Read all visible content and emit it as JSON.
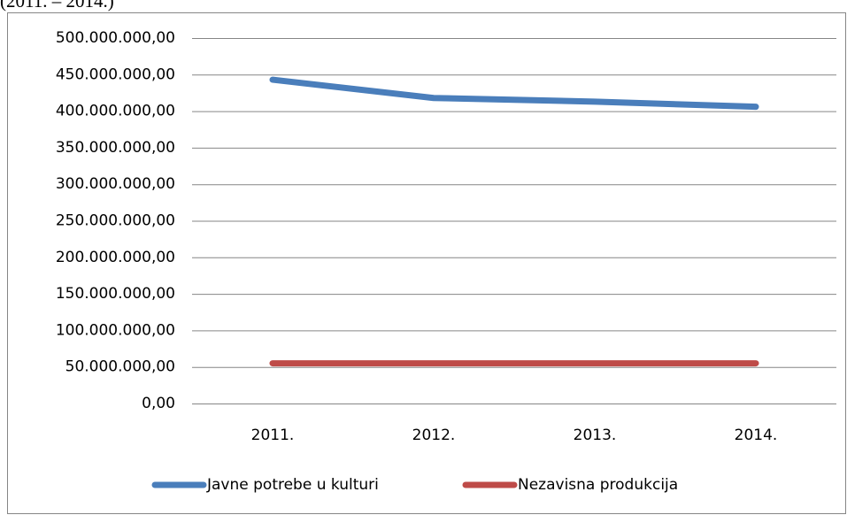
{
  "chart_data": {
    "type": "line",
    "title": "(2011. – 2014.)",
    "categories": [
      "2011.",
      "2012.",
      "2013.",
      "2014."
    ],
    "series": [
      {
        "name": "Javne potrebe u kulturi",
        "color": "#4a7ebb",
        "values": [
          443000000,
          418000000,
          413000000,
          406000000
        ]
      },
      {
        "name": "Nezavisna produkcija",
        "color": "#be4b48",
        "values": [
          55000000,
          55000000,
          55000000,
          55000000
        ]
      }
    ],
    "ylim": [
      0,
      500000000
    ],
    "yticks": [
      {
        "value": 0,
        "label": "0,00"
      },
      {
        "value": 50000000,
        "label": "50.000.000,00"
      },
      {
        "value": 100000000,
        "label": "100.000.000,00"
      },
      {
        "value": 150000000,
        "label": "150.000.000,00"
      },
      {
        "value": 200000000,
        "label": "200.000.000,00"
      },
      {
        "value": 250000000,
        "label": "250.000.000,00"
      },
      {
        "value": 300000000,
        "label": "300.000.000,00"
      },
      {
        "value": 350000000,
        "label": "350.000.000,00"
      },
      {
        "value": 400000000,
        "label": "400.000.000,00"
      },
      {
        "value": 450000000,
        "label": "450.000.000,00"
      },
      {
        "value": 500000000,
        "label": "500.000.000,00"
      }
    ],
    "grid": true,
    "legend": "bottom"
  }
}
